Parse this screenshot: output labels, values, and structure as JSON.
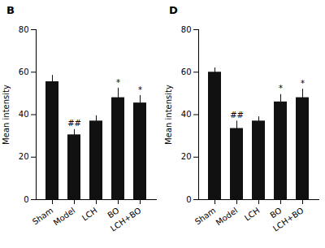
{
  "chart_data": [
    {
      "type": "bar",
      "title": "B",
      "categories": [
        "Sham",
        "Model",
        "LCH",
        "BO",
        "LCH+BO"
      ],
      "values": [
        55.5,
        30.5,
        37.0,
        48.0,
        45.5
      ],
      "errors": [
        3.0,
        2.5,
        2.5,
        4.5,
        3.5
      ],
      "annotations": [
        null,
        "##",
        null,
        "*",
        "*"
      ],
      "ylim": [
        0,
        80
      ],
      "yticks": [
        0,
        20,
        40,
        60,
        80
      ],
      "ylabel": "Mean intensity",
      "color": "#111111"
    },
    {
      "type": "bar",
      "title": "D",
      "categories": [
        "Sham",
        "Model",
        "LCH",
        "BO",
        "LCH+BO"
      ],
      "values": [
        60.0,
        33.5,
        37.0,
        46.0,
        48.0
      ],
      "errors": [
        2.0,
        3.5,
        2.0,
        3.5,
        4.0
      ],
      "annotations": [
        null,
        "##",
        null,
        "*",
        "*"
      ],
      "ylim": [
        0,
        80
      ],
      "yticks": [
        0,
        20,
        40,
        60,
        80
      ],
      "ylabel": "Mean intensity",
      "color": "#111111"
    }
  ]
}
